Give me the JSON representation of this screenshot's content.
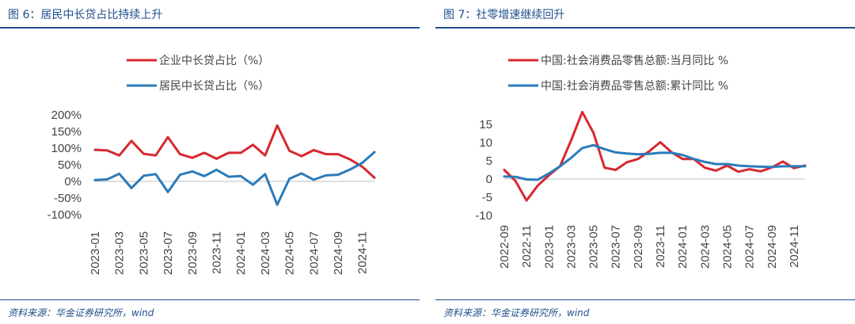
{
  "figures": [
    {
      "title": "图 6：居民中长贷占比持续上升",
      "source": "资料来源：华金证券研究所，wind"
    },
    {
      "title": "图 7：社零增速继续回升",
      "source": "资料来源：华金证券研究所，wind"
    }
  ],
  "chart_data": [
    {
      "type": "line",
      "title": "",
      "xlabel": "",
      "ylabel": "",
      "ylim": [
        -100,
        200
      ],
      "yticks": [
        "200%",
        "150%",
        "100%",
        "50%",
        "0%",
        "-50%",
        "-100%"
      ],
      "ytick_values": [
        200,
        150,
        100,
        50,
        0,
        -50,
        -100
      ],
      "x": [
        "2023-01",
        "2023-02",
        "2023-03",
        "2023-04",
        "2023-05",
        "2023-06",
        "2023-07",
        "2023-08",
        "2023-09",
        "2023-10",
        "2023-11",
        "2023-12",
        "2024-01",
        "2024-02",
        "2024-03",
        "2024-04",
        "2024-05",
        "2024-06",
        "2024-07",
        "2024-08",
        "2024-09",
        "2024-10",
        "2024-11",
        "2024-12"
      ],
      "xtick_labels": [
        "2023-01",
        "2023-03",
        "2023-05",
        "2023-07",
        "2023-09",
        "2023-11",
        "2024-01",
        "2024-03",
        "2024-05",
        "2024-07",
        "2024-09",
        "2024-11"
      ],
      "grid": false,
      "legend_position": "top",
      "series": [
        {
          "name": "企业中长贷占比（%）",
          "color": "#d7282f",
          "values": [
            95,
            93,
            78,
            122,
            83,
            78,
            133,
            82,
            71,
            86,
            68,
            86,
            86,
            110,
            78,
            168,
            92,
            76,
            94,
            82,
            82,
            66,
            44,
            11
          ]
        },
        {
          "name": "居民中长贷占比（%）",
          "color": "#2b7bba",
          "values": [
            4,
            6,
            23,
            -20,
            17,
            22,
            -32,
            20,
            30,
            16,
            35,
            14,
            16,
            -10,
            22,
            -70,
            8,
            24,
            5,
            18,
            20,
            36,
            56,
            88
          ]
        }
      ]
    },
    {
      "type": "line",
      "title": "",
      "xlabel": "",
      "ylabel": "",
      "ylim": [
        -10,
        15
      ],
      "yticks": [
        "15",
        "10",
        "5",
        "0",
        "-5",
        "-10"
      ],
      "ytick_values": [
        15,
        10,
        5,
        0,
        -5,
        -10
      ],
      "x": [
        "2022-09",
        "2022-10",
        "2022-11",
        "2022-12",
        "2023-01",
        "2023-02",
        "2023-03",
        "2023-04",
        "2023-05",
        "2023-06",
        "2023-07",
        "2023-08",
        "2023-09",
        "2023-10",
        "2023-11",
        "2023-12",
        "2024-01",
        "2024-02",
        "2024-03",
        "2024-04",
        "2024-05",
        "2024-06",
        "2024-07",
        "2024-08",
        "2024-09",
        "2024-10",
        "2024-11",
        "2024-12"
      ],
      "xtick_labels": [
        "2022-09",
        "2022-11",
        "2023-01",
        "2023-03",
        "2023-05",
        "2023-07",
        "2023-09",
        "2023-11",
        "2024-01",
        "2024-03",
        "2024-05",
        "2024-07",
        "2024-09",
        "2024-11"
      ],
      "grid": false,
      "legend_position": "top",
      "series": [
        {
          "name": "中国:社会消费品零售总额:当月同比 %",
          "color": "#d7282f",
          "values": [
            2.5,
            -0.5,
            -5.9,
            -1.8,
            1.0,
            3.5,
            10.6,
            18.4,
            12.7,
            3.1,
            2.5,
            4.6,
            5.5,
            7.6,
            10.1,
            7.4,
            5.5,
            5.5,
            3.1,
            2.3,
            3.7,
            2.0,
            2.7,
            2.1,
            3.2,
            4.8,
            3.0,
            3.7
          ]
        },
        {
          "name": "中国:社会消费品零售总额:累计同比 %",
          "color": "#2b7bba",
          "values": [
            0.7,
            0.6,
            -0.1,
            -0.2,
            1.5,
            3.5,
            5.8,
            8.5,
            9.3,
            8.2,
            7.3,
            7.0,
            6.8,
            6.9,
            7.2,
            7.2,
            6.6,
            5.5,
            4.7,
            4.1,
            4.1,
            3.7,
            3.5,
            3.4,
            3.3,
            3.5,
            3.5,
            3.5
          ]
        }
      ]
    }
  ]
}
